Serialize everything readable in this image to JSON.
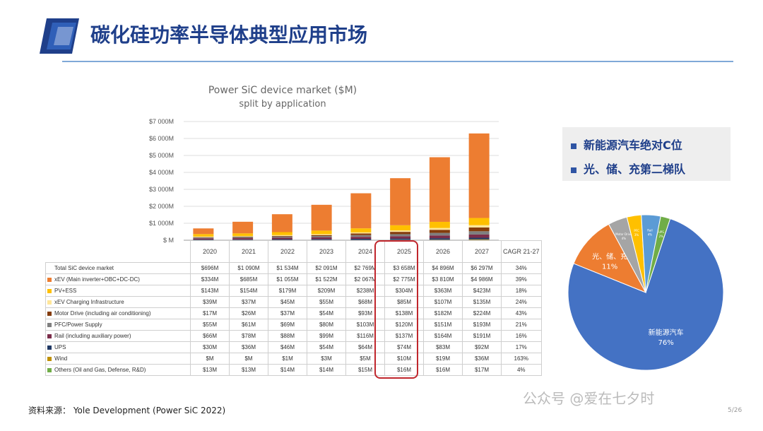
{
  "slide": {
    "title": "碳化硅功率半导体典型应用市场",
    "source": "资料来源： Yole Development (Power SiC 2022)",
    "watermark": "公众号 @爱在七夕时",
    "page_number": "5/26"
  },
  "callout": {
    "bullets": [
      "新能源汽车绝对C位",
      "光、储、充第二梯队"
    ],
    "accent_color": "#2f55a4"
  },
  "table": {
    "header": [
      "2020",
      "2021",
      "2022",
      "2023",
      "2024",
      "2025",
      "2026",
      "2027",
      "CAGR 21-27"
    ],
    "rows": [
      {
        "label": "Total SiC device market",
        "color": "",
        "values": [
          "$696M",
          "$1 090M",
          "$1 534M",
          "$2 091M",
          "$2 769M",
          "$3 658M",
          "$4 896M",
          "$6 297M",
          "34%"
        ]
      },
      {
        "label": "xEV (Main inverter+OBC+DC-DC)",
        "color": "#ed7d31",
        "values": [
          "$334M",
          "$685M",
          "$1 055M",
          "$1 522M",
          "$2 067M",
          "$2 775M",
          "$3 810M",
          "$4 986M",
          "39%"
        ]
      },
      {
        "label": "PV+ESS",
        "color": "#ffc000",
        "values": [
          "$143M",
          "$154M",
          "$179M",
          "$209M",
          "$238M",
          "$304M",
          "$363M",
          "$423M",
          "18%"
        ]
      },
      {
        "label": "xEV Charging Infrastructure",
        "color": "#ffe699",
        "values": [
          "$39M",
          "$37M",
          "$45M",
          "$55M",
          "$68M",
          "$85M",
          "$107M",
          "$135M",
          "24%"
        ]
      },
      {
        "label": "Motor Drive (including air conditioning)",
        "color": "#843c0c",
        "values": [
          "$17M",
          "$26M",
          "$37M",
          "$54M",
          "$93M",
          "$138M",
          "$182M",
          "$224M",
          "43%"
        ]
      },
      {
        "label": "PFC/Power Supply",
        "color": "#7f7f7f",
        "values": [
          "$55M",
          "$61M",
          "$69M",
          "$80M",
          "$103M",
          "$120M",
          "$151M",
          "$193M",
          "21%"
        ]
      },
      {
        "label": "Rail (including auxiliary power)",
        "color": "#7b2c4a",
        "values": [
          "$66M",
          "$78M",
          "$88M",
          "$99M",
          "$116M",
          "$137M",
          "$164M",
          "$191M",
          "16%"
        ]
      },
      {
        "label": "UPS",
        "color": "#203864",
        "values": [
          "$30M",
          "$36M",
          "$46M",
          "$54M",
          "$64M",
          "$74M",
          "$83M",
          "$92M",
          "17%"
        ]
      },
      {
        "label": "Wind",
        "color": "#bf9000",
        "values": [
          "$M",
          "$M",
          "$1M",
          "$3M",
          "$5M",
          "$10M",
          "$19M",
          "$36M",
          "163%"
        ]
      },
      {
        "label": "Others (Oil and Gas, Defense, R&D)",
        "color": "#70ad47",
        "values": [
          "$13M",
          "$13M",
          "$14M",
          "$14M",
          "$15M",
          "$16M",
          "$16M",
          "$17M",
          "4%"
        ]
      }
    ]
  },
  "chart_data": [
    {
      "type": "bar",
      "title": "Power SiC device market ($M)",
      "subtitle": "split by application",
      "categories": [
        "2020",
        "2021",
        "2022",
        "2023",
        "2024",
        "2025",
        "2026",
        "2027"
      ],
      "ylim": [
        0,
        7000
      ],
      "yticks": [
        "$ M",
        "$1 000M",
        "$2 000M",
        "$3 000M",
        "$4 000M",
        "$5 000M",
        "$6 000M",
        "$7 000M"
      ],
      "stacked": true,
      "grid": true,
      "series": [
        {
          "name": "Others (Oil and Gas, Defense, R&D)",
          "color": "#70ad47",
          "values": [
            13,
            13,
            14,
            14,
            15,
            16,
            16,
            17
          ]
        },
        {
          "name": "Wind",
          "color": "#bf9000",
          "values": [
            0,
            0,
            1,
            3,
            5,
            10,
            19,
            36
          ]
        },
        {
          "name": "UPS",
          "color": "#203864",
          "values": [
            30,
            36,
            46,
            54,
            64,
            74,
            83,
            92
          ]
        },
        {
          "name": "Rail (including auxiliary power)",
          "color": "#7b2c4a",
          "values": [
            66,
            78,
            88,
            99,
            116,
            137,
            164,
            191
          ]
        },
        {
          "name": "PFC/Power Supply",
          "color": "#7f7f7f",
          "values": [
            55,
            61,
            69,
            80,
            103,
            120,
            151,
            193
          ]
        },
        {
          "name": "Motor Drive (including air conditioning)",
          "color": "#843c0c",
          "values": [
            17,
            26,
            37,
            54,
            93,
            138,
            182,
            224
          ]
        },
        {
          "name": "xEV Charging Infrastructure",
          "color": "#ffe699",
          "values": [
            39,
            37,
            45,
            55,
            68,
            85,
            107,
            135
          ]
        },
        {
          "name": "PV+ESS",
          "color": "#ffc000",
          "values": [
            143,
            154,
            179,
            209,
            238,
            304,
            363,
            423
          ]
        },
        {
          "name": "xEV (Main inverter+OBC+DC-DC)",
          "color": "#ed7d31",
          "values": [
            334,
            685,
            1055,
            1522,
            2067,
            2775,
            3810,
            4986
          ]
        }
      ],
      "highlight_category": "2025",
      "highlight_color": "#c0262c"
    },
    {
      "type": "pie",
      "slices": [
        {
          "label": "新能源汽车",
          "value": 76,
          "pct_label": "76%",
          "color": "#4472c4"
        },
        {
          "label": "光、储、充",
          "value": 11,
          "pct_label": "11%",
          "color": "#ed7d31"
        },
        {
          "label": "Motor Drive",
          "value": 4,
          "pct_label": "4%",
          "color": "#a5a5a5"
        },
        {
          "label": "PFC",
          "value": 3,
          "pct_label": "3%",
          "color": "#ffc000"
        },
        {
          "label": "Rail",
          "value": 4,
          "pct_label": "4%",
          "color": "#5b9bd5"
        },
        {
          "label": "UPS",
          "value": 2,
          "pct_label": "2%",
          "color": "#70ad47"
        }
      ]
    }
  ]
}
